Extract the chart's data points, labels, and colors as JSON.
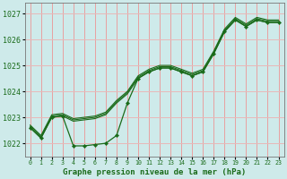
{
  "title": "Graphe pression niveau de la mer (hPa)",
  "bg_color": "#ceeaea",
  "grid_color_v": "#e8a0a0",
  "grid_color_h": "#e8b8b8",
  "line_color": "#1a6b1a",
  "xlim": [
    -0.5,
    23.5
  ],
  "ylim": [
    1021.5,
    1027.4
  ],
  "yticks": [
    1022,
    1023,
    1024,
    1025,
    1026,
    1027
  ],
  "xticks": [
    0,
    1,
    2,
    3,
    4,
    5,
    6,
    7,
    8,
    9,
    10,
    11,
    12,
    13,
    14,
    15,
    16,
    17,
    18,
    19,
    20,
    21,
    22,
    23
  ],
  "bundle_line1": [
    1022.6,
    1022.2,
    1023.0,
    1023.05,
    1022.85,
    1022.9,
    1022.95,
    1023.1,
    1023.55,
    1023.9,
    1024.5,
    1024.75,
    1024.9,
    1024.9,
    1024.75,
    1024.6,
    1024.75,
    1025.45,
    1026.3,
    1026.75,
    1026.5,
    1026.75,
    1026.65,
    1026.65
  ],
  "bundle_line2": [
    1022.65,
    1022.25,
    1023.05,
    1023.1,
    1022.9,
    1022.95,
    1023.0,
    1023.15,
    1023.6,
    1023.95,
    1024.55,
    1024.8,
    1024.95,
    1024.95,
    1024.8,
    1024.65,
    1024.8,
    1025.5,
    1026.35,
    1026.8,
    1026.55,
    1026.8,
    1026.7,
    1026.7
  ],
  "bundle_line3": [
    1022.7,
    1022.3,
    1023.1,
    1023.15,
    1022.95,
    1023.0,
    1023.05,
    1023.2,
    1023.65,
    1024.0,
    1024.6,
    1024.85,
    1025.0,
    1025.0,
    1024.85,
    1024.7,
    1024.85,
    1025.55,
    1026.4,
    1026.85,
    1026.6,
    1026.85,
    1026.75,
    1026.75
  ],
  "dip_line": [
    1022.6,
    1022.2,
    1023.0,
    1023.05,
    1021.9,
    1021.9,
    1021.95,
    1022.0,
    1022.3,
    1023.55,
    1024.5,
    1024.75,
    1024.9,
    1024.9,
    1024.75,
    1024.6,
    1024.75,
    1025.45,
    1026.3,
    1026.75,
    1026.5,
    1026.75,
    1026.65,
    1026.65
  ]
}
